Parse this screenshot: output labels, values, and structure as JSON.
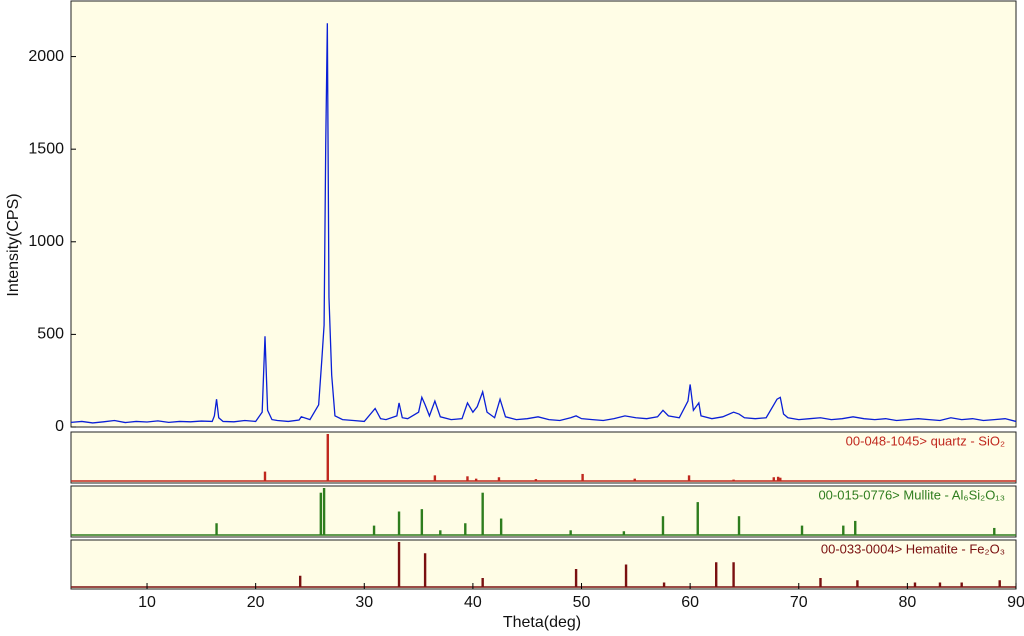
{
  "chart_data": [
    {
      "type": "line",
      "y_label": "Intensity(CPS)",
      "color": "#0a1fd6",
      "xlim": [
        3,
        90
      ],
      "ylim": [
        0,
        2300
      ],
      "yticks": [
        0,
        500,
        1000,
        1500,
        2000
      ],
      "x": [
        3,
        4,
        5,
        6,
        7,
        8,
        9,
        10,
        11,
        12,
        13,
        14,
        15,
        16,
        16.2,
        16.4,
        16.6,
        17,
        18,
        19,
        20,
        20.6,
        20.86,
        21.1,
        21.5,
        22,
        23,
        24,
        24.2,
        25,
        25.8,
        26.1,
        26.3,
        26.45,
        26.6,
        26.75,
        27,
        27.3,
        28,
        29,
        30,
        31,
        31.5,
        32,
        33,
        33.2,
        33.5,
        34,
        35,
        35.3,
        35.6,
        36,
        36.5,
        37,
        38,
        39,
        39.5,
        40,
        40.4,
        40.9,
        41.3,
        42,
        42.5,
        43,
        44,
        45,
        46,
        47,
        48,
        49,
        49.5,
        50,
        51,
        52,
        53,
        54,
        55,
        56,
        57,
        57.5,
        58,
        59,
        59.8,
        60,
        60.3,
        60.8,
        61,
        62,
        63,
        64,
        64.5,
        65,
        66,
        67,
        67.7,
        68,
        68.3,
        68.6,
        69,
        70,
        71,
        72,
        73,
        74,
        75,
        76,
        77,
        78,
        79,
        80,
        81,
        82,
        83,
        84,
        85,
        86,
        87,
        88,
        89,
        90
      ],
      "values": [
        25,
        30,
        22,
        28,
        35,
        24,
        30,
        27,
        33,
        25,
        30,
        28,
        32,
        30,
        60,
        150,
        50,
        30,
        28,
        35,
        30,
        80,
        490,
        90,
        40,
        35,
        30,
        38,
        55,
        40,
        120,
        370,
        550,
        1520,
        2180,
        700,
        280,
        60,
        40,
        35,
        30,
        100,
        45,
        40,
        60,
        130,
        50,
        45,
        80,
        160,
        120,
        60,
        140,
        55,
        40,
        45,
        130,
        80,
        110,
        190,
        80,
        50,
        150,
        55,
        40,
        45,
        55,
        40,
        35,
        50,
        60,
        45,
        40,
        35,
        45,
        60,
        50,
        45,
        55,
        90,
        60,
        50,
        140,
        230,
        90,
        130,
        60,
        45,
        55,
        80,
        70,
        50,
        45,
        50,
        120,
        150,
        160,
        70,
        50,
        40,
        45,
        50,
        40,
        45,
        55,
        45,
        40,
        45,
        35,
        40,
        45,
        40,
        35,
        50,
        40,
        45,
        35,
        40,
        45,
        30
      ]
    },
    {
      "type": "stem",
      "title": "00-048-1045> quartz - SiO₂",
      "color": "#c0281e",
      "xlim": [
        3,
        90
      ],
      "ylim": [
        0,
        100
      ],
      "x": [
        20.86,
        26.64,
        36.5,
        39.5,
        40.3,
        42.4,
        45.8,
        50.1,
        54.9,
        59.9,
        64.0,
        67.7,
        68.1,
        68.3
      ],
      "values": [
        20,
        100,
        12,
        10,
        5,
        8,
        4,
        15,
        5,
        12,
        3,
        8,
        9,
        7
      ]
    },
    {
      "type": "stem",
      "title": "00-015-0776> Mullite - Al₆Si₂O₁₃",
      "color": "#2e7d1e",
      "xlim": [
        3,
        90
      ],
      "ylim": [
        0,
        100
      ],
      "x": [
        16.4,
        26.0,
        26.3,
        30.9,
        33.2,
        35.3,
        37.0,
        39.3,
        40.9,
        42.6,
        49.0,
        53.9,
        57.5,
        60.7,
        64.5,
        70.3,
        74.1,
        75.2,
        88.0
      ],
      "values": [
        25,
        90,
        100,
        20,
        50,
        55,
        10,
        25,
        90,
        35,
        10,
        8,
        40,
        70,
        40,
        20,
        20,
        30,
        15
      ]
    },
    {
      "type": "stem",
      "title": "00-033-0004> Hematite - Fe₂O₃",
      "color": "#7a1010",
      "xlim": [
        3,
        90
      ],
      "ylim": [
        0,
        100
      ],
      "x_label": "Theta(deg)",
      "xticks": [
        10,
        20,
        30,
        40,
        50,
        60,
        70,
        80,
        90
      ],
      "x": [
        24.1,
        33.2,
        35.6,
        40.9,
        49.5,
        54.1,
        57.6,
        62.4,
        64.0,
        72.0,
        75.4,
        80.7,
        83.0,
        85.0,
        88.5
      ],
      "values": [
        25,
        100,
        75,
        20,
        40,
        50,
        10,
        55,
        55,
        20,
        15,
        10,
        10,
        10,
        15
      ]
    }
  ]
}
